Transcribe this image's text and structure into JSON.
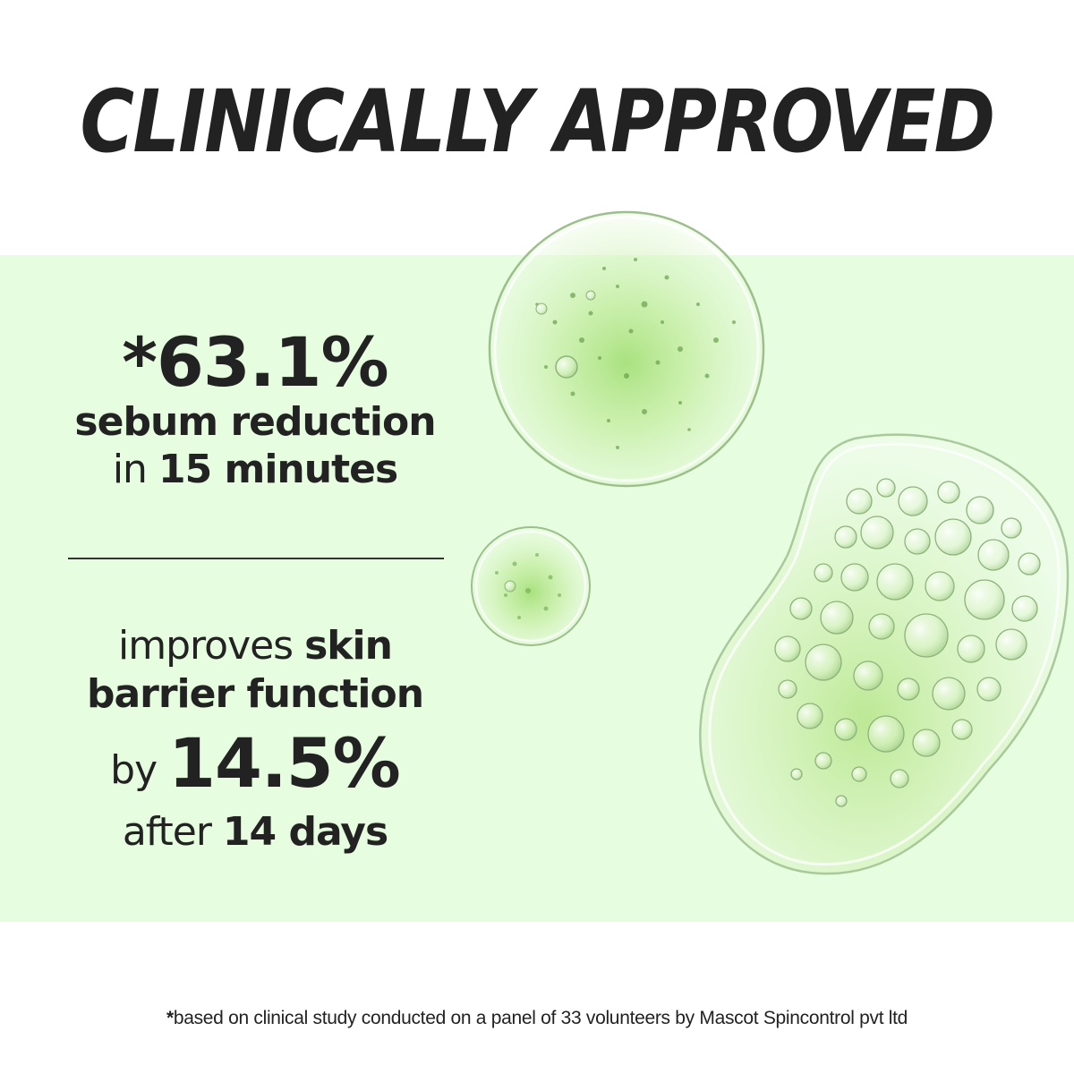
{
  "headline": "CLINICALLY APPROVED",
  "stat1": {
    "value": "*63.1%",
    "line1": "sebum reduction",
    "line2_prefix": "in",
    "line2_bold": "15 minutes"
  },
  "stat2": {
    "line1_prefix": "improves",
    "line1_bold": "skin",
    "line2_bold": "barrier function",
    "line3_prefix": "by",
    "line3_value": "14.5%",
    "line4_prefix": "after",
    "line4_bold": "14 days"
  },
  "footnote": {
    "asterisk": "*",
    "text": "based on clinical study conducted on a panel of 33 volunteers by Mascot Spincontrol pvt ltd"
  },
  "colors": {
    "band": "#e6fde0",
    "text": "#222222",
    "gel": "#9fd872"
  }
}
